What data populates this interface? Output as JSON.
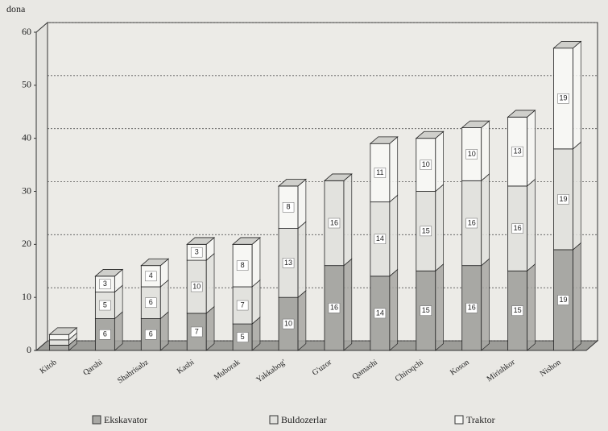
{
  "chart_data": {
    "type": "bar3d_stacked",
    "y_label": "dona",
    "categories": [
      "Kitob",
      "Qarshi",
      "Shahrisabz",
      "Kasbi",
      "Muborak",
      "Yakkabog'",
      "G'uzor",
      "Qamashi",
      "Chiroqchi",
      "Koson",
      "Mirishkor",
      "Nishon"
    ],
    "series": [
      {
        "name": "Ekskavator",
        "color": "#a8a8a4",
        "values": [
          1,
          6,
          6,
          7,
          5,
          10,
          16,
          14,
          15,
          16,
          15,
          19
        ]
      },
      {
        "name": "Buldozerlar",
        "color": "#e2e2de",
        "values": [
          1,
          5,
          6,
          10,
          7,
          13,
          16,
          14,
          15,
          16,
          16,
          19
        ]
      },
      {
        "name": "Traktor",
        "color": "#f7f7f4",
        "values": [
          1,
          3,
          4,
          3,
          8,
          8,
          null,
          11,
          10,
          10,
          13,
          19
        ]
      }
    ],
    "ylim": [
      0,
      60
    ],
    "yticks": [
      0,
      10,
      20,
      30,
      40,
      50,
      60
    ],
    "grid": true,
    "legend": "bottom"
  }
}
